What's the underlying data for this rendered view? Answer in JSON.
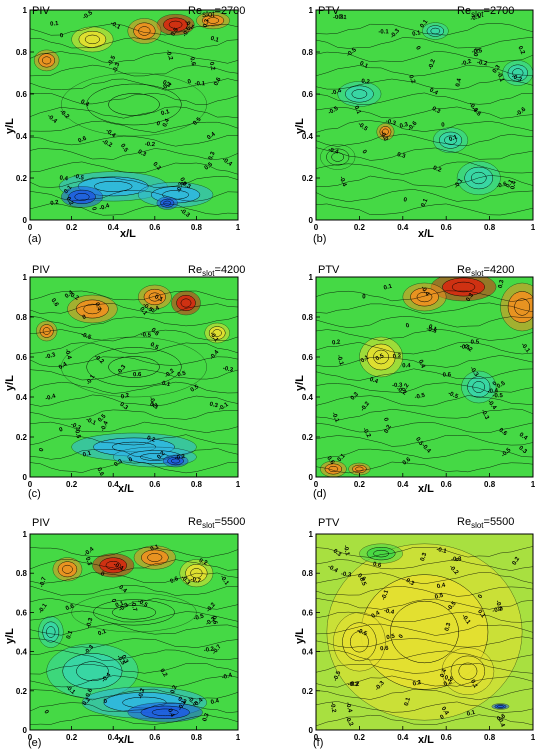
{
  "colors": {
    "positive_strong": "#d62a10",
    "positive": "#f09020",
    "positive_light": "#e6e030",
    "zero": "#45d945",
    "negative_light": "#38d6a8",
    "negative": "#30b8e0",
    "negative_strong": "#1f5fe0",
    "contour_line": "#000000"
  },
  "chart_data": [
    {
      "type": "heatmap",
      "method": "PIV",
      "re_prefix": "Re",
      "re_sub": "slot",
      "re_value": "=2700",
      "panel_label": "(a)",
      "xlabel": "x/L",
      "ylabel": "y/L",
      "xlim": [
        0,
        1
      ],
      "ylim": [
        0,
        1
      ],
      "x_ticks": [
        "0",
        "0.2",
        "0.4",
        "0.6",
        "0.8",
        "1"
      ],
      "y_ticks": [
        "0",
        "0.2",
        "0.4",
        "0.6",
        "0.8",
        "1"
      ],
      "background": "#45d945",
      "regions": [
        {
          "x": 0.7,
          "y": 0.93,
          "rx": 0.09,
          "ry": 0.05,
          "value": 1.0
        },
        {
          "x": 0.55,
          "y": 0.9,
          "rx": 0.08,
          "ry": 0.06,
          "value": 0.45
        },
        {
          "x": 0.88,
          "y": 0.95,
          "rx": 0.08,
          "ry": 0.04,
          "value": 0.5
        },
        {
          "x": 0.08,
          "y": 0.76,
          "rx": 0.06,
          "ry": 0.05,
          "value": 0.4
        },
        {
          "x": 0.3,
          "y": 0.86,
          "rx": 0.1,
          "ry": 0.06,
          "value": 0.3
        },
        {
          "x": 0.4,
          "y": 0.16,
          "rx": 0.26,
          "ry": 0.07,
          "value": -0.45
        },
        {
          "x": 0.25,
          "y": 0.11,
          "rx": 0.1,
          "ry": 0.05,
          "value": -0.8
        },
        {
          "x": 0.7,
          "y": 0.12,
          "rx": 0.18,
          "ry": 0.06,
          "value": -0.5
        },
        {
          "x": 0.66,
          "y": 0.08,
          "rx": 0.05,
          "ry": 0.03,
          "value": -0.9
        },
        {
          "x": 0.5,
          "y": 0.55,
          "rx": 0.35,
          "ry": 0.15,
          "value": 0.1
        }
      ],
      "contour_labels": [
        "-0.1",
        "0.1",
        "0.4",
        "-0.4",
        "0",
        "0.3",
        "-0.2",
        "0.2",
        "0.5",
        "-0.5",
        "-0.3",
        "0.6"
      ]
    },
    {
      "type": "heatmap",
      "method": "PTV",
      "re_prefix": "Re",
      "re_sub": "slot",
      "re_value": "=2700",
      "panel_label": "(b)",
      "xlabel": "x/L",
      "ylabel": "y/L",
      "xlim": [
        0,
        1
      ],
      "ylim": [
        0,
        1
      ],
      "x_ticks": [
        "0",
        "0.2",
        "0.4",
        "0.6",
        "0.8",
        "1"
      ],
      "y_ticks": [
        "0",
        "0.2",
        "0.4",
        "0.6",
        "0.8",
        "1"
      ],
      "background": "#45d945",
      "regions": [
        {
          "x": 0.75,
          "y": 0.2,
          "rx": 0.1,
          "ry": 0.08,
          "value": -0.3
        },
        {
          "x": 0.93,
          "y": 0.7,
          "rx": 0.07,
          "ry": 0.06,
          "value": -0.3
        },
        {
          "x": 0.2,
          "y": 0.6,
          "rx": 0.1,
          "ry": 0.06,
          "value": -0.2
        },
        {
          "x": 0.32,
          "y": 0.42,
          "rx": 0.04,
          "ry": 0.04,
          "value": 0.6
        },
        {
          "x": 0.55,
          "y": 0.9,
          "rx": 0.06,
          "ry": 0.04,
          "value": -0.2
        },
        {
          "x": 0.62,
          "y": 0.38,
          "rx": 0.08,
          "ry": 0.06,
          "value": -0.3
        },
        {
          "x": 0.1,
          "y": 0.3,
          "rx": 0.08,
          "ry": 0.06,
          "value": -0.1
        }
      ],
      "contour_labels": [
        "0.1",
        "-0.1",
        "0",
        "-0.2",
        "0.2",
        "-0.4",
        "0.3",
        "-0.3",
        "-0.6",
        "0.4",
        "-0.5",
        "0.1"
      ]
    },
    {
      "type": "heatmap",
      "method": "PIV",
      "re_prefix": "Re",
      "re_sub": "slot",
      "re_value": "=4200",
      "panel_label": "(c)",
      "xlabel": "x/L",
      "ylabel": "y/L",
      "xlim": [
        0,
        1
      ],
      "ylim": [
        0,
        1
      ],
      "x_ticks": [
        "0",
        "0.2",
        "0.4",
        "0.6",
        "0.8",
        "1"
      ],
      "y_ticks": [
        "0",
        "0.2",
        "0.4",
        "0.6",
        "0.8",
        "1"
      ],
      "background": "#45d945",
      "regions": [
        {
          "x": 0.75,
          "y": 0.87,
          "rx": 0.07,
          "ry": 0.06,
          "value": 0.9
        },
        {
          "x": 0.6,
          "y": 0.9,
          "rx": 0.08,
          "ry": 0.06,
          "value": 0.5
        },
        {
          "x": 0.3,
          "y": 0.84,
          "rx": 0.12,
          "ry": 0.07,
          "value": 0.45
        },
        {
          "x": 0.08,
          "y": 0.73,
          "rx": 0.05,
          "ry": 0.05,
          "value": 0.4
        },
        {
          "x": 0.9,
          "y": 0.72,
          "rx": 0.06,
          "ry": 0.05,
          "value": 0.3
        },
        {
          "x": 0.5,
          "y": 0.15,
          "rx": 0.3,
          "ry": 0.07,
          "value": -0.35
        },
        {
          "x": 0.6,
          "y": 0.1,
          "rx": 0.2,
          "ry": 0.05,
          "value": -0.6
        },
        {
          "x": 0.7,
          "y": 0.08,
          "rx": 0.06,
          "ry": 0.03,
          "value": -0.8
        },
        {
          "x": 0.5,
          "y": 0.55,
          "rx": 0.35,
          "ry": 0.15,
          "value": 0.1
        }
      ],
      "contour_labels": [
        "0.1",
        "0.3",
        "-0.1",
        "0",
        "0.5",
        "0.2",
        "-0.3",
        "-0.5",
        "0.4",
        "-0.2",
        "0.6",
        "-0.4"
      ]
    },
    {
      "type": "heatmap",
      "method": "PTV",
      "re_prefix": "Re",
      "re_sub": "slot",
      "re_value": "=4200",
      "panel_label": "(d)",
      "xlabel": "x/L",
      "ylabel": "y/L",
      "xlim": [
        0,
        1
      ],
      "ylim": [
        0,
        1
      ],
      "x_ticks": [
        "0",
        "0.2",
        "0.4",
        "0.6",
        "0.8",
        "1"
      ],
      "y_ticks": [
        "0",
        "0.2",
        "0.4",
        "0.6",
        "0.8",
        "1"
      ],
      "background": "#45d945",
      "regions": [
        {
          "x": 0.68,
          "y": 0.95,
          "rx": 0.15,
          "ry": 0.07,
          "value": 0.9
        },
        {
          "x": 0.95,
          "y": 0.85,
          "rx": 0.1,
          "ry": 0.12,
          "value": 0.6
        },
        {
          "x": 0.5,
          "y": 0.9,
          "rx": 0.1,
          "ry": 0.07,
          "value": 0.4
        },
        {
          "x": 0.08,
          "y": 0.04,
          "rx": 0.06,
          "ry": 0.04,
          "value": 0.7
        },
        {
          "x": 0.2,
          "y": 0.04,
          "rx": 0.05,
          "ry": 0.03,
          "value": 0.5
        },
        {
          "x": 0.75,
          "y": 0.45,
          "rx": 0.08,
          "ry": 0.08,
          "value": -0.2
        },
        {
          "x": 0.3,
          "y": 0.6,
          "rx": 0.1,
          "ry": 0.1,
          "value": 0.2
        }
      ],
      "contour_labels": [
        "0.3",
        "0.1",
        "0.2",
        "-0.2",
        "-0.1",
        "0",
        "0.4",
        "-0.3",
        "0.5",
        "-0.4",
        "0.6",
        "-0.5"
      ]
    },
    {
      "type": "heatmap",
      "method": "PIV",
      "re_prefix": "Re",
      "re_sub": "slot",
      "re_value": "=5500",
      "panel_label": "(e)",
      "xlabel": "x/L",
      "ylabel": "y/L",
      "xlim": [
        0,
        1
      ],
      "ylim": [
        0,
        1
      ],
      "x_ticks": [
        "0",
        "0.2",
        "0.4",
        "0.6",
        "0.8",
        "1"
      ],
      "y_ticks": [
        "0",
        "0.2",
        "0.4",
        "0.6",
        "0.8",
        "1"
      ],
      "background": "#45d945",
      "regions": [
        {
          "x": 0.4,
          "y": 0.84,
          "rx": 0.1,
          "ry": 0.06,
          "value": 0.95
        },
        {
          "x": 0.6,
          "y": 0.88,
          "rx": 0.1,
          "ry": 0.06,
          "value": 0.6
        },
        {
          "x": 0.18,
          "y": 0.82,
          "rx": 0.07,
          "ry": 0.06,
          "value": 0.4
        },
        {
          "x": 0.8,
          "y": 0.8,
          "rx": 0.08,
          "ry": 0.07,
          "value": 0.35
        },
        {
          "x": 0.3,
          "y": 0.3,
          "rx": 0.22,
          "ry": 0.14,
          "value": -0.3
        },
        {
          "x": 0.55,
          "y": 0.14,
          "rx": 0.3,
          "ry": 0.08,
          "value": -0.6
        },
        {
          "x": 0.65,
          "y": 0.09,
          "rx": 0.18,
          "ry": 0.05,
          "value": -0.85
        },
        {
          "x": 0.1,
          "y": 0.5,
          "rx": 0.06,
          "ry": 0.08,
          "value": -0.2
        },
        {
          "x": 0.5,
          "y": 0.6,
          "rx": 0.3,
          "ry": 0.1,
          "value": 0.1
        }
      ],
      "contour_labels": [
        "0.2",
        "-0.1",
        "0.4",
        "0.6",
        "0",
        "-0.3",
        "-0.5",
        "-0.7",
        "0.1",
        "-0.4",
        "0.3",
        "-0.2"
      ]
    },
    {
      "type": "heatmap",
      "method": "PTV",
      "re_prefix": "Re",
      "re_sub": "slot",
      "re_value": "=5500",
      "panel_label": "(f)",
      "xlabel": "x/L",
      "ylabel": "y/L",
      "xlim": [
        0,
        1
      ],
      "ylim": [
        0,
        1
      ],
      "x_ticks": [
        "0",
        "0.2",
        "0.4",
        "0.6",
        "0.8",
        "1"
      ],
      "y_ticks": [
        "0",
        "0.2",
        "0.4",
        "0.6",
        "0.8",
        "1"
      ],
      "background": "#a8e040",
      "regions": [
        {
          "x": 0.5,
          "y": 0.5,
          "rx": 0.45,
          "ry": 0.45,
          "value": 0.3
        },
        {
          "x": 0.2,
          "y": 0.45,
          "rx": 0.12,
          "ry": 0.15,
          "value": 0.35
        },
        {
          "x": 0.7,
          "y": 0.3,
          "rx": 0.12,
          "ry": 0.12,
          "value": 0.15
        },
        {
          "x": 0.3,
          "y": 0.9,
          "rx": 0.1,
          "ry": 0.05,
          "value": 0.1
        },
        {
          "x": 0.85,
          "y": 0.12,
          "rx": 0.04,
          "ry": 0.015,
          "value": -0.9
        }
      ],
      "contour_labels": [
        "0.2",
        "0.1",
        "0.3",
        "-0.2",
        "0",
        "-0.1",
        "0.4",
        "-0.3",
        "0.5",
        "-0.4",
        "-0.5",
        "0.6"
      ]
    }
  ]
}
